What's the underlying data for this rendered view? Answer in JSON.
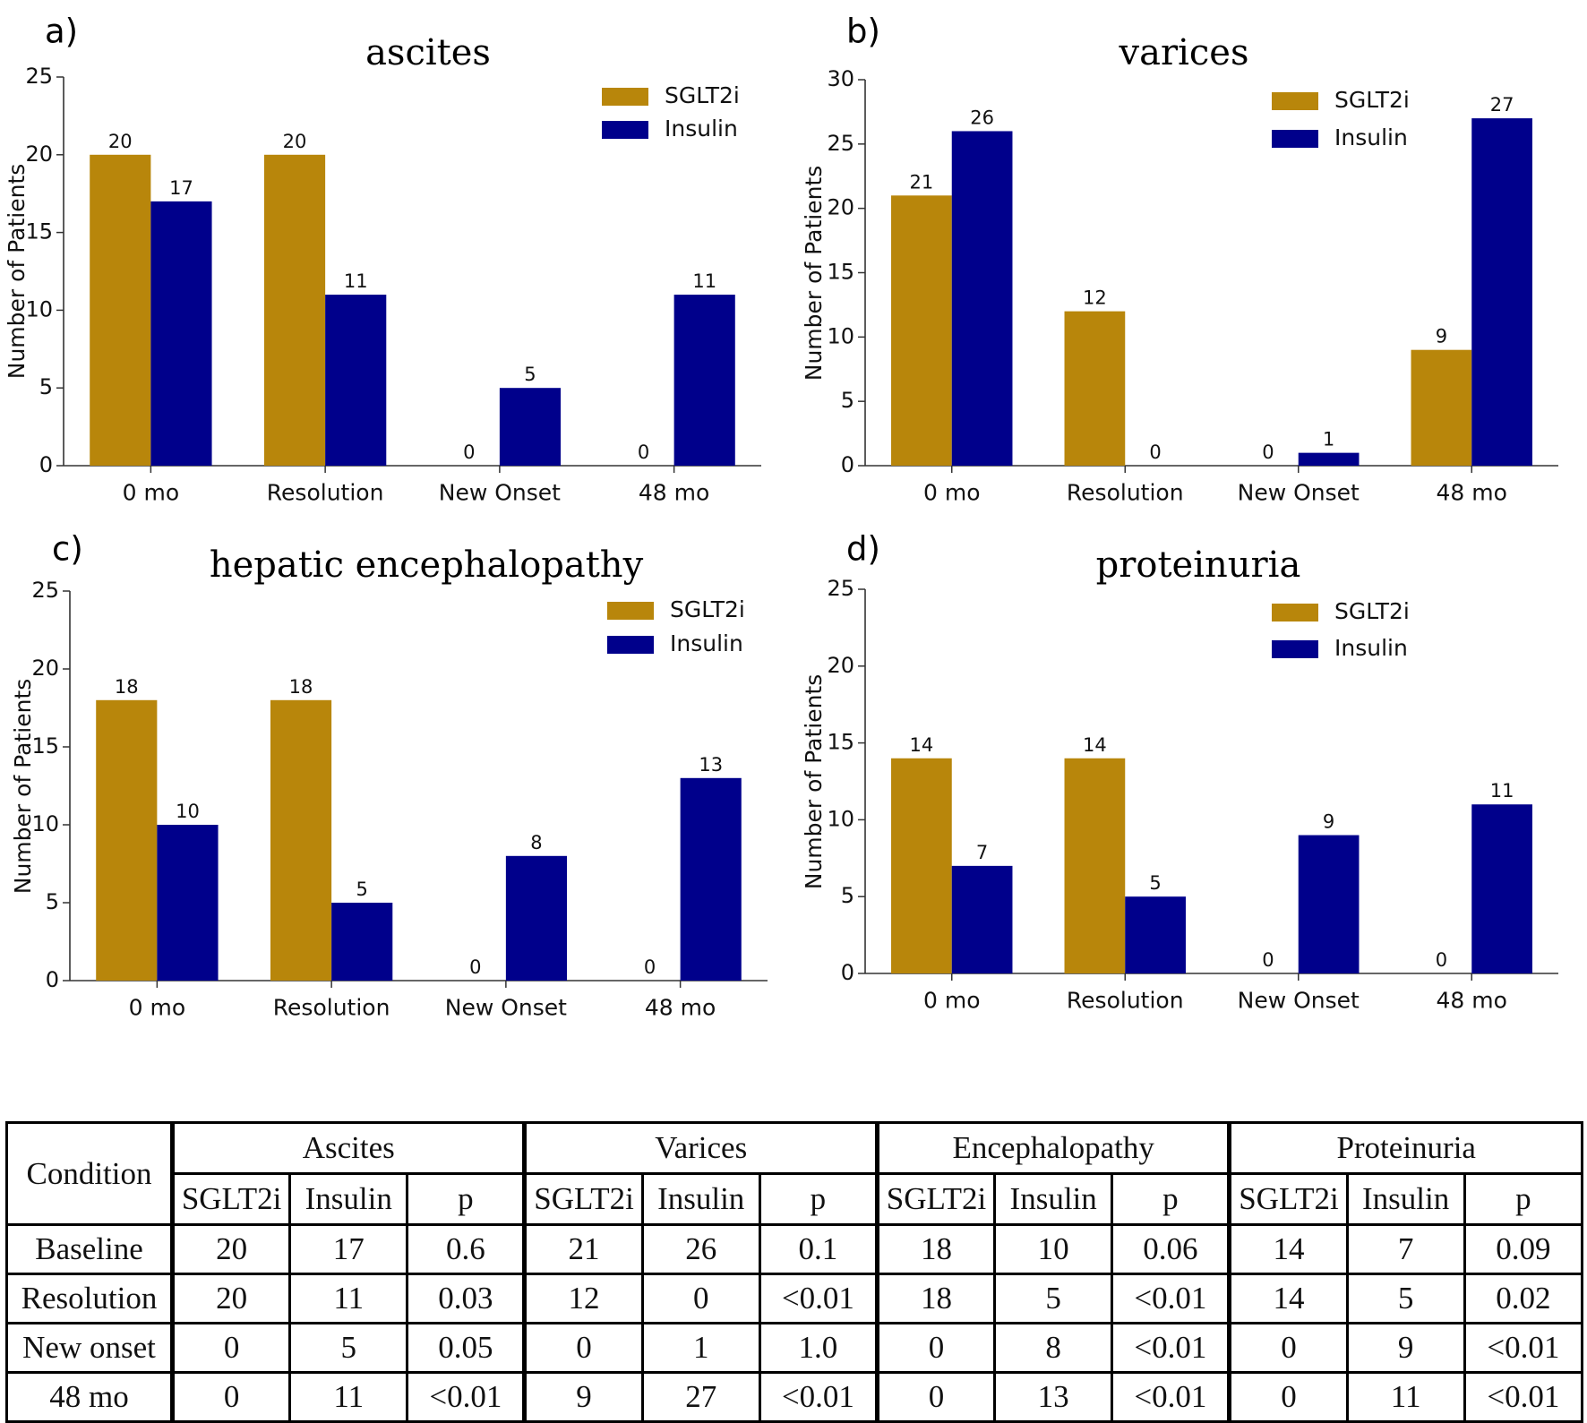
{
  "colors": {
    "sglt2i": "#b8860b",
    "insulin": "#00008b",
    "axis": "#333333"
  },
  "chart_data": [
    {
      "type": "bar",
      "panel": "a)",
      "title": "ascites",
      "ylabel": "Number of Patients",
      "xlabel": "",
      "ylim": [
        0,
        25
      ],
      "yticks": [
        0,
        5,
        10,
        15,
        20,
        25
      ],
      "categories": [
        "0 mo",
        "Resolution",
        "New Onset",
        "48 mo"
      ],
      "series": [
        {
          "name": "SGLT2i",
          "values": [
            20,
            20,
            0,
            0
          ]
        },
        {
          "name": "Insulin",
          "values": [
            17,
            11,
            5,
            11
          ]
        }
      ],
      "legend": "top-right"
    },
    {
      "type": "bar",
      "panel": "b)",
      "title": "varices",
      "ylabel": "Number of Patients",
      "xlabel": "",
      "ylim": [
        0,
        30
      ],
      "yticks": [
        0,
        5,
        10,
        15,
        20,
        25,
        30
      ],
      "categories": [
        "0 mo",
        "Resolution",
        "New Onset",
        "48 mo"
      ],
      "series": [
        {
          "name": "SGLT2i",
          "values": [
            21,
            12,
            0,
            9
          ]
        },
        {
          "name": "Insulin",
          "values": [
            26,
            0,
            1,
            27
          ]
        }
      ],
      "legend": "top-right"
    },
    {
      "type": "bar",
      "panel": "c)",
      "title": "hepatic encephalopathy",
      "ylabel": "Number of Patients",
      "xlabel": "",
      "ylim": [
        0,
        25
      ],
      "yticks": [
        0,
        5,
        10,
        15,
        20,
        25
      ],
      "categories": [
        "0 mo",
        "Resolution",
        "New Onset",
        "48 mo"
      ],
      "series": [
        {
          "name": "SGLT2i",
          "values": [
            18,
            18,
            0,
            0
          ]
        },
        {
          "name": "Insulin",
          "values": [
            10,
            5,
            8,
            13
          ]
        }
      ],
      "legend": "top-right"
    },
    {
      "type": "bar",
      "panel": "d)",
      "title": "proteinuria",
      "ylabel": "Number of Patients",
      "xlabel": "",
      "ylim": [
        0,
        25
      ],
      "yticks": [
        0,
        5,
        10,
        15,
        20,
        25
      ],
      "categories": [
        "0 mo",
        "Resolution",
        "New Onset",
        "48 mo"
      ],
      "series": [
        {
          "name": "SGLT2i",
          "values": [
            14,
            14,
            0,
            0
          ]
        },
        {
          "name": "Insulin",
          "values": [
            7,
            5,
            9,
            11
          ]
        }
      ],
      "legend": "top-right"
    }
  ],
  "table": {
    "condition_header": "Condition",
    "groups": [
      "Ascites",
      "Varices",
      "Encephalopathy",
      "Proteinuria"
    ],
    "subheaders": [
      "SGLT2i",
      "Insulin",
      "p"
    ],
    "rows": [
      {
        "label": "Baseline",
        "cells": [
          "20",
          "17",
          "0.6",
          "21",
          "26",
          "0.1",
          "18",
          "10",
          "0.06",
          "14",
          "7",
          "0.09"
        ]
      },
      {
        "label": "Resolution",
        "cells": [
          "20",
          "11",
          "0.03",
          "12",
          "0",
          "<0.01",
          "18",
          "5",
          "<0.01",
          "14",
          "5",
          "0.02"
        ]
      },
      {
        "label": "New onset",
        "cells": [
          "0",
          "5",
          "0.05",
          "0",
          "1",
          "1.0",
          "0",
          "8",
          "<0.01",
          "0",
          "9",
          "<0.01"
        ]
      },
      {
        "label": "48 mo",
        "cells": [
          "0",
          "11",
          "<0.01",
          "9",
          "27",
          "<0.01",
          "0",
          "13",
          "<0.01",
          "0",
          "11",
          "<0.01"
        ]
      }
    ]
  }
}
